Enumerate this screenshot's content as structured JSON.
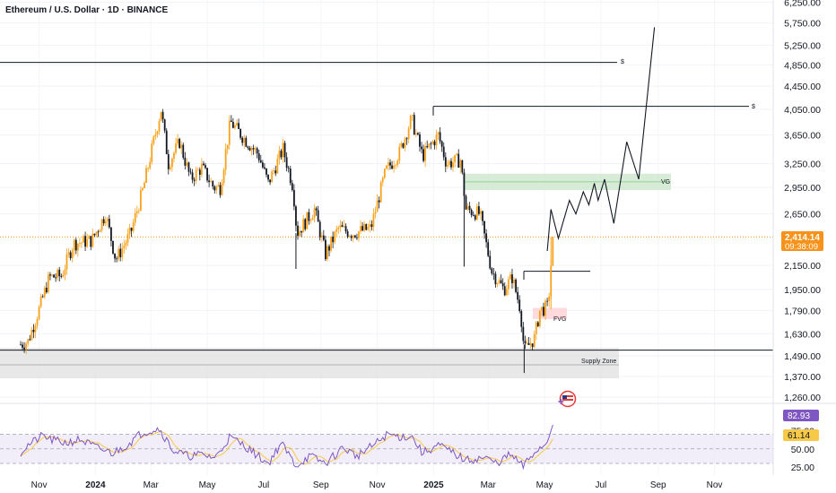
{
  "header": {
    "title": "Ethereum / U.S. Dollar · 1D · BINANCE"
  },
  "price_badge": {
    "value": "2,414.14",
    "countdown": "09:38:09"
  },
  "rsi_badges": {
    "rsi": "82.93",
    "ma": "61.14"
  },
  "annotations": {
    "dollar_label": "$",
    "fvg_label": "FVG",
    "fvg_label_upper": "VG",
    "supply_zone": "Supply Zone"
  },
  "colors": {
    "up": "#f7a21b",
    "down": "#131722",
    "current_price": "#f7931a",
    "rsi_line": "#7e57c2",
    "rsi_ma": "#f7c948",
    "rsi_band": "#ede7f6",
    "fvg_green": "#c8e6c9",
    "fvg_red": "#ffcdd2",
    "supply_zone": "#e0e0e0"
  },
  "chart_data": {
    "type": "candlestick",
    "title": "Ethereum / U.S. Dollar · 1D · BINANCE",
    "x_tick_labels": [
      "Nov",
      "2024",
      "Mar",
      "May",
      "Jul",
      "Sep",
      "Nov",
      "2025",
      "Mar",
      "May",
      "Jul",
      "Sep",
      "Nov"
    ],
    "y_tick_labels": [
      "6,250.00",
      "5,750.00",
      "5,250.00",
      "4,850.00",
      "4,450.00",
      "4,050.00",
      "3,650.00",
      "3,250.00",
      "2,950.00",
      "2,650.00",
      "2,150.00",
      "1,950.00",
      "1,790.00",
      "1,630.00",
      "1,490.00",
      "1,370.00",
      "1,260.00"
    ],
    "y_tick_values": [
      6250,
      5750,
      5250,
      4850,
      4450,
      4050,
      3650,
      3250,
      2950,
      2650,
      2150,
      1950,
      1790,
      1630,
      1490,
      1370,
      1260
    ],
    "price_scale": "log",
    "current_price": 2414.14,
    "horizontal_levels": [
      {
        "price": 4900,
        "label": "$"
      },
      {
        "price": 4100,
        "label": "$"
      },
      {
        "price": 2100,
        "label": ""
      },
      {
        "price": 1525,
        "label": ""
      }
    ],
    "zones": [
      {
        "name": "FVG",
        "top": 3120,
        "bottom": 2920,
        "color": "green"
      },
      {
        "name": "FVG",
        "top": 1810,
        "bottom": 1730,
        "color": "red"
      },
      {
        "name": "Supply Zone",
        "top": 1540,
        "bottom": 1360,
        "color": "gray"
      }
    ],
    "projection_path": [
      {
        "date": "2025-05-04",
        "price": 2280
      },
      {
        "date": "2025-05-08",
        "price": 2700
      },
      {
        "date": "2025-05-16",
        "price": 2400
      },
      {
        "date": "2025-05-28",
        "price": 2800
      },
      {
        "date": "2025-06-04",
        "price": 2650
      },
      {
        "date": "2025-06-12",
        "price": 2900
      },
      {
        "date": "2025-06-18",
        "price": 2750
      },
      {
        "date": "2025-06-24",
        "price": 3000
      },
      {
        "date": "2025-06-28",
        "price": 2800
      },
      {
        "date": "2025-07-05",
        "price": 3050
      },
      {
        "date": "2025-07-15",
        "price": 2550
      },
      {
        "date": "2025-07-29",
        "price": 3550
      },
      {
        "date": "2025-08-11",
        "price": 3050
      },
      {
        "date": "2025-08-28",
        "price": 5650
      }
    ],
    "price_anchors": [
      {
        "date": "2023-10-12",
        "price": 1560
      },
      {
        "date": "2023-10-20",
        "price": 1580
      },
      {
        "date": "2023-11-01",
        "price": 1800
      },
      {
        "date": "2023-11-12",
        "price": 2050
      },
      {
        "date": "2023-11-25",
        "price": 2060
      },
      {
        "date": "2023-12-08",
        "price": 2350
      },
      {
        "date": "2023-12-28",
        "price": 2380
      },
      {
        "date": "2024-01-12",
        "price": 2650
      },
      {
        "date": "2024-01-23",
        "price": 2200
      },
      {
        "date": "2024-02-08",
        "price": 2450
      },
      {
        "date": "2024-02-22",
        "price": 2950
      },
      {
        "date": "2024-03-03",
        "price": 3500
      },
      {
        "date": "2024-03-12",
        "price": 4050
      },
      {
        "date": "2024-03-20",
        "price": 3250
      },
      {
        "date": "2024-04-01",
        "price": 3550
      },
      {
        "date": "2024-04-13",
        "price": 3050
      },
      {
        "date": "2024-04-25",
        "price": 3200
      },
      {
        "date": "2024-05-08",
        "price": 2950
      },
      {
        "date": "2024-05-15",
        "price": 2950
      },
      {
        "date": "2024-05-26",
        "price": 3850
      },
      {
        "date": "2024-06-10",
        "price": 3600
      },
      {
        "date": "2024-06-25",
        "price": 3380
      },
      {
        "date": "2024-07-06",
        "price": 3000
      },
      {
        "date": "2024-07-22",
        "price": 3450
      },
      {
        "date": "2024-08-02",
        "price": 2950
      },
      {
        "date": "2024-08-06",
        "price": 2450
      },
      {
        "date": "2024-08-25",
        "price": 2700
      },
      {
        "date": "2024-09-06",
        "price": 2250
      },
      {
        "date": "2024-09-20",
        "price": 2500
      },
      {
        "date": "2024-10-05",
        "price": 2450
      },
      {
        "date": "2024-10-25",
        "price": 2500
      },
      {
        "date": "2024-11-10",
        "price": 3150
      },
      {
        "date": "2024-11-25",
        "price": 3400
      },
      {
        "date": "2024-12-08",
        "price": 3900
      },
      {
        "date": "2024-12-20",
        "price": 3350
      },
      {
        "date": "2025-01-06",
        "price": 3650
      },
      {
        "date": "2025-01-15",
        "price": 3250
      },
      {
        "date": "2025-01-30",
        "price": 3300
      },
      {
        "date": "2025-02-05",
        "price": 2700
      },
      {
        "date": "2025-02-20",
        "price": 2650
      },
      {
        "date": "2025-03-05",
        "price": 2100
      },
      {
        "date": "2025-03-18",
        "price": 1950
      },
      {
        "date": "2025-03-27",
        "price": 2050
      },
      {
        "date": "2025-04-05",
        "price": 1800
      },
      {
        "date": "2025-04-09",
        "price": 1520
      },
      {
        "date": "2025-04-20",
        "price": 1600
      },
      {
        "date": "2025-04-26",
        "price": 1790
      },
      {
        "date": "2025-05-05",
        "price": 1820
      },
      {
        "date": "2025-05-10",
        "price": 2414.14
      }
    ],
    "rsi": {
      "levels": [
        70,
        50,
        30
      ],
      "ylim": [
        20,
        90
      ],
      "y_tick_labels": [
        "75.00",
        "50.00",
        "25.00"
      ],
      "y_tick_values": [
        75,
        50,
        25
      ],
      "last_rsi": 82.93,
      "last_ma": 61.14,
      "anchors": [
        {
          "date": "2023-10-12",
          "rsi": 45
        },
        {
          "date": "2023-10-20",
          "rsi": 55
        },
        {
          "date": "2023-11-05",
          "rsi": 68
        },
        {
          "date": "2023-11-15",
          "rsi": 62
        },
        {
          "date": "2023-12-01",
          "rsi": 58
        },
        {
          "date": "2023-12-15",
          "rsi": 63
        },
        {
          "date": "2024-01-05",
          "rsi": 50
        },
        {
          "date": "2024-01-20",
          "rsi": 44
        },
        {
          "date": "2024-02-05",
          "rsi": 56
        },
        {
          "date": "2024-02-20",
          "rsi": 72
        },
        {
          "date": "2024-03-10",
          "rsi": 78
        },
        {
          "date": "2024-03-25",
          "rsi": 48
        },
        {
          "date": "2024-04-10",
          "rsi": 40
        },
        {
          "date": "2024-04-25",
          "rsi": 42
        },
        {
          "date": "2024-05-10",
          "rsi": 38
        },
        {
          "date": "2024-05-25",
          "rsi": 66
        },
        {
          "date": "2024-06-10",
          "rsi": 55
        },
        {
          "date": "2024-06-25",
          "rsi": 40
        },
        {
          "date": "2024-07-06",
          "rsi": 30
        },
        {
          "date": "2024-07-20",
          "rsi": 58
        },
        {
          "date": "2024-08-05",
          "rsi": 27
        },
        {
          "date": "2024-08-20",
          "rsi": 40
        },
        {
          "date": "2024-09-06",
          "rsi": 30
        },
        {
          "date": "2024-09-25",
          "rsi": 52
        },
        {
          "date": "2024-10-10",
          "rsi": 40
        },
        {
          "date": "2024-10-28",
          "rsi": 55
        },
        {
          "date": "2024-11-12",
          "rsi": 70
        },
        {
          "date": "2024-11-28",
          "rsi": 66
        },
        {
          "date": "2024-12-08",
          "rsi": 68
        },
        {
          "date": "2024-12-20",
          "rsi": 44
        },
        {
          "date": "2025-01-06",
          "rsi": 55
        },
        {
          "date": "2025-01-20",
          "rsi": 46
        },
        {
          "date": "2025-02-05",
          "rsi": 34
        },
        {
          "date": "2025-02-25",
          "rsi": 38
        },
        {
          "date": "2025-03-10",
          "rsi": 30
        },
        {
          "date": "2025-03-25",
          "rsi": 42
        },
        {
          "date": "2025-04-08",
          "rsi": 26
        },
        {
          "date": "2025-04-22",
          "rsi": 48
        },
        {
          "date": "2025-05-02",
          "rsi": 56
        },
        {
          "date": "2025-05-10",
          "rsi": 82.93
        }
      ]
    }
  }
}
